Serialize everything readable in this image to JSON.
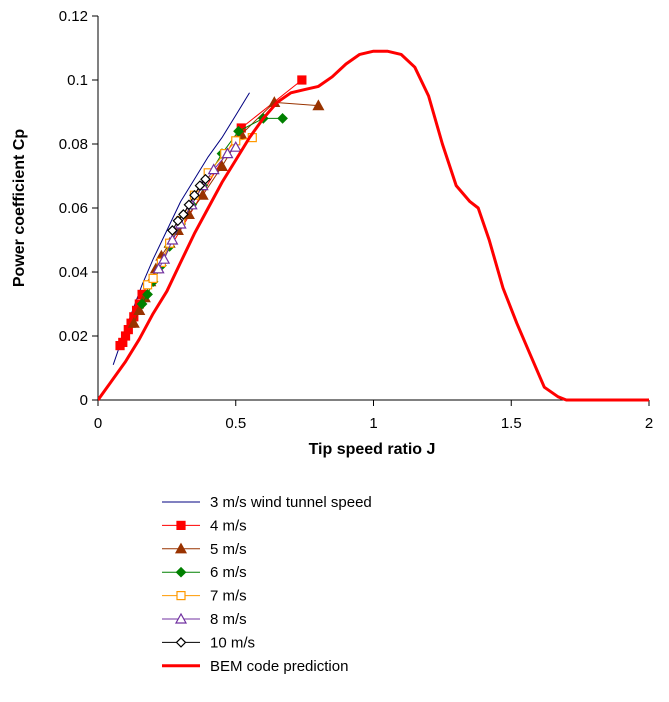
{
  "chart_data": {
    "type": "line",
    "title": "",
    "xlabel": "Tip speed ratio J",
    "ylabel": "Power coefficient Cp",
    "xlim": [
      0,
      2
    ],
    "ylim": [
      0,
      0.12
    ],
    "x_ticks": [
      0,
      0.5,
      1,
      1.5,
      2
    ],
    "x_tick_labels": [
      "0",
      "0.5",
      "1",
      "1.5",
      "2"
    ],
    "y_ticks": [
      0,
      0.02,
      0.04,
      0.06,
      0.08,
      0.1,
      0.12
    ],
    "y_tick_labels": [
      "0",
      "0.02",
      "0.04",
      "0.06",
      "0.08",
      "0.1",
      "0.12"
    ],
    "grid": false,
    "legend_position": "bottom",
    "series": [
      {
        "name": "3 m/s wind tunnel speed",
        "color": "#000080",
        "marker": "none",
        "line_width": 1,
        "points": [
          [
            0.055,
            0.011
          ],
          [
            0.075,
            0.016
          ],
          [
            0.1,
            0.022
          ],
          [
            0.13,
            0.029
          ],
          [
            0.16,
            0.036
          ],
          [
            0.2,
            0.044
          ],
          [
            0.25,
            0.053
          ],
          [
            0.3,
            0.062
          ],
          [
            0.35,
            0.069
          ],
          [
            0.4,
            0.076
          ],
          [
            0.45,
            0.082
          ],
          [
            0.5,
            0.089
          ],
          [
            0.55,
            0.096
          ]
        ]
      },
      {
        "name": "4 m/s",
        "color": "#ff0000",
        "marker": "square-filled",
        "line_width": 1,
        "points": [
          [
            0.08,
            0.017
          ],
          [
            0.09,
            0.018
          ],
          [
            0.1,
            0.02
          ],
          [
            0.11,
            0.022
          ],
          [
            0.12,
            0.024
          ],
          [
            0.13,
            0.026
          ],
          [
            0.14,
            0.028
          ],
          [
            0.15,
            0.03
          ],
          [
            0.16,
            0.033
          ],
          [
            0.52,
            0.085
          ],
          [
            0.74,
            0.1
          ]
        ]
      },
      {
        "name": "5 m/s",
        "color": "#993300",
        "marker": "triangle-filled",
        "line_width": 1,
        "points": [
          [
            0.13,
            0.024
          ],
          [
            0.15,
            0.028
          ],
          [
            0.17,
            0.032
          ],
          [
            0.19,
            0.037
          ],
          [
            0.21,
            0.041
          ],
          [
            0.23,
            0.045
          ],
          [
            0.26,
            0.049
          ],
          [
            0.29,
            0.053
          ],
          [
            0.33,
            0.058
          ],
          [
            0.38,
            0.064
          ],
          [
            0.45,
            0.073
          ],
          [
            0.52,
            0.083
          ],
          [
            0.64,
            0.093
          ],
          [
            0.8,
            0.092
          ]
        ]
      },
      {
        "name": "6 m/s",
        "color": "#008000",
        "marker": "diamond-filled",
        "line_width": 1,
        "points": [
          [
            0.16,
            0.03
          ],
          [
            0.18,
            0.033
          ],
          [
            0.2,
            0.037
          ],
          [
            0.23,
            0.042
          ],
          [
            0.26,
            0.048
          ],
          [
            0.3,
            0.055
          ],
          [
            0.34,
            0.061
          ],
          [
            0.38,
            0.067
          ],
          [
            0.45,
            0.077
          ],
          [
            0.51,
            0.084
          ],
          [
            0.6,
            0.088
          ],
          [
            0.67,
            0.088
          ]
        ]
      },
      {
        "name": "7 m/s",
        "color": "#ff9900",
        "marker": "square-open",
        "line_width": 1,
        "points": [
          [
            0.18,
            0.036
          ],
          [
            0.2,
            0.038
          ],
          [
            0.23,
            0.043
          ],
          [
            0.26,
            0.049
          ],
          [
            0.3,
            0.056
          ],
          [
            0.35,
            0.064
          ],
          [
            0.4,
            0.071
          ],
          [
            0.46,
            0.077
          ],
          [
            0.5,
            0.081
          ],
          [
            0.56,
            0.082
          ]
        ]
      },
      {
        "name": "8 m/s",
        "color": "#7030a0",
        "marker": "triangle-open",
        "line_width": 1,
        "points": [
          [
            0.22,
            0.041
          ],
          [
            0.24,
            0.044
          ],
          [
            0.27,
            0.05
          ],
          [
            0.3,
            0.055
          ],
          [
            0.34,
            0.061
          ],
          [
            0.38,
            0.067
          ],
          [
            0.42,
            0.072
          ],
          [
            0.47,
            0.077
          ],
          [
            0.5,
            0.079
          ]
        ]
      },
      {
        "name": "10 m/s",
        "color": "#000000",
        "marker": "diamond-open",
        "line_width": 1,
        "points": [
          [
            0.27,
            0.053
          ],
          [
            0.29,
            0.056
          ],
          [
            0.31,
            0.058
          ],
          [
            0.33,
            0.061
          ],
          [
            0.35,
            0.064
          ],
          [
            0.37,
            0.067
          ],
          [
            0.39,
            0.069
          ]
        ]
      },
      {
        "name": "BEM code prediction",
        "color": "#ff0000",
        "marker": "none",
        "line_width": 3,
        "points": [
          [
            0,
            0
          ],
          [
            0.05,
            0.006
          ],
          [
            0.1,
            0.012
          ],
          [
            0.15,
            0.019
          ],
          [
            0.2,
            0.027
          ],
          [
            0.25,
            0.034
          ],
          [
            0.3,
            0.043
          ],
          [
            0.35,
            0.052
          ],
          [
            0.4,
            0.06
          ],
          [
            0.45,
            0.068
          ],
          [
            0.5,
            0.075
          ],
          [
            0.55,
            0.082
          ],
          [
            0.6,
            0.088
          ],
          [
            0.65,
            0.093
          ],
          [
            0.7,
            0.096
          ],
          [
            0.75,
            0.097
          ],
          [
            0.8,
            0.098
          ],
          [
            0.85,
            0.101
          ],
          [
            0.9,
            0.105
          ],
          [
            0.95,
            0.108
          ],
          [
            1.0,
            0.109
          ],
          [
            1.05,
            0.109
          ],
          [
            1.1,
            0.108
          ],
          [
            1.15,
            0.104
          ],
          [
            1.2,
            0.095
          ],
          [
            1.25,
            0.08
          ],
          [
            1.3,
            0.067
          ],
          [
            1.35,
            0.062
          ],
          [
            1.38,
            0.06
          ],
          [
            1.42,
            0.05
          ],
          [
            1.47,
            0.035
          ],
          [
            1.52,
            0.024
          ],
          [
            1.57,
            0.014
          ],
          [
            1.62,
            0.004
          ],
          [
            1.67,
            0.001
          ],
          [
            1.7,
            0
          ],
          [
            1.8,
            0
          ],
          [
            1.9,
            0
          ],
          [
            2.0,
            0
          ]
        ]
      }
    ]
  }
}
